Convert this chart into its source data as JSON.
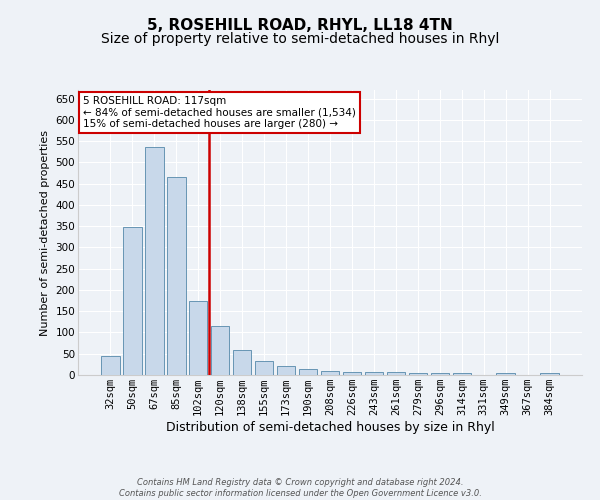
{
  "title": "5, ROSEHILL ROAD, RHYL, LL18 4TN",
  "subtitle": "Size of property relative to semi-detached houses in Rhyl",
  "xlabel": "Distribution of semi-detached houses by size in Rhyl",
  "ylabel": "Number of semi-detached properties",
  "categories": [
    "32sqm",
    "50sqm",
    "67sqm",
    "85sqm",
    "102sqm",
    "120sqm",
    "138sqm",
    "155sqm",
    "173sqm",
    "190sqm",
    "208sqm",
    "226sqm",
    "243sqm",
    "261sqm",
    "279sqm",
    "296sqm",
    "314sqm",
    "331sqm",
    "349sqm",
    "367sqm",
    "384sqm"
  ],
  "values": [
    45,
    348,
    535,
    465,
    175,
    115,
    58,
    33,
    20,
    15,
    10,
    8,
    7,
    6,
    5,
    4,
    4,
    0,
    4,
    0,
    4
  ],
  "bar_color": "#c8d8ea",
  "bar_edge_color": "#5588aa",
  "vline_index": 5,
  "vline_color": "#cc0000",
  "annotation_text": "5 ROSEHILL ROAD: 117sqm\n← 84% of semi-detached houses are smaller (1,534)\n15% of semi-detached houses are larger (280) →",
  "annotation_box_color": "white",
  "annotation_box_edge": "#cc0000",
  "ylim": [
    0,
    670
  ],
  "yticks": [
    0,
    50,
    100,
    150,
    200,
    250,
    300,
    350,
    400,
    450,
    500,
    550,
    600,
    650
  ],
  "title_fontsize": 11,
  "subtitle_fontsize": 10,
  "xlabel_fontsize": 9,
  "ylabel_fontsize": 8,
  "tick_fontsize": 7.5,
  "annot_fontsize": 7.5,
  "footer_line1": "Contains HM Land Registry data © Crown copyright and database right 2024.",
  "footer_line2": "Contains public sector information licensed under the Open Government Licence v3.0.",
  "bg_color": "#eef2f7",
  "plot_bg_color": "#eef2f7",
  "grid_color": "#ffffff"
}
